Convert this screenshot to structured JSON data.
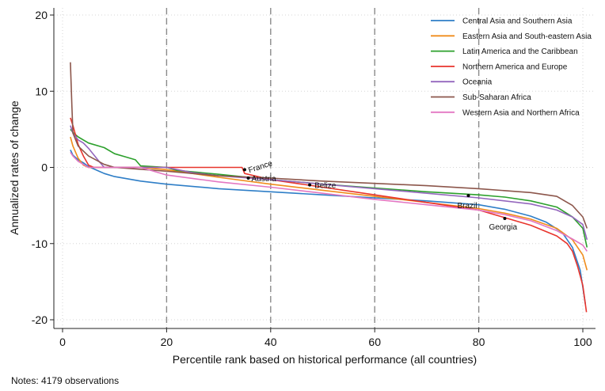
{
  "chart_data": {
    "type": "line",
    "xlabel": "Percentile rank based on historical performance (all countries)",
    "ylabel": "Annualized rates of change",
    "xlim": [
      0,
      101
    ],
    "ylim": [
      -21,
      20.5
    ],
    "xticks": [
      0,
      20,
      40,
      60,
      80,
      100
    ],
    "yticks": [
      -20,
      -10,
      0,
      10,
      20
    ],
    "grid": true,
    "legend_position": "top-right",
    "vlines": [
      20,
      40,
      60,
      80
    ],
    "series": [
      {
        "name": "Central Asia and Southern Asia",
        "color": "#2e7ec7",
        "points": [
          [
            1.5,
            2.3
          ],
          [
            2,
            1.6
          ],
          [
            3,
            1.0
          ],
          [
            4,
            0.6
          ],
          [
            5,
            0.1
          ],
          [
            6,
            -0.2
          ],
          [
            8,
            -0.8
          ],
          [
            10,
            -1.2
          ],
          [
            15,
            -1.8
          ],
          [
            20,
            -2.2
          ],
          [
            30,
            -2.8
          ],
          [
            40,
            -3.2
          ],
          [
            50,
            -3.6
          ],
          [
            60,
            -4.0
          ],
          [
            70,
            -4.4
          ],
          [
            80,
            -4.9
          ],
          [
            85,
            -5.5
          ],
          [
            90,
            -6.4
          ],
          [
            93,
            -7.2
          ],
          [
            96,
            -8.5
          ],
          [
            98,
            -10.5
          ],
          [
            99.5,
            -13.5
          ],
          [
            100.5,
            -18.0
          ]
        ]
      },
      {
        "name": "Eastern Asia and South-eastern Asia",
        "color": "#f08c1c",
        "points": [
          [
            1.5,
            4.0
          ],
          [
            2,
            2.8
          ],
          [
            3,
            1.2
          ],
          [
            4,
            0.3
          ],
          [
            5,
            0.0
          ],
          [
            10,
            0.0
          ],
          [
            15,
            0.0
          ],
          [
            20,
            -0.3
          ],
          [
            25,
            -0.8
          ],
          [
            30,
            -1.3
          ],
          [
            40,
            -2.2
          ],
          [
            50,
            -3.0
          ],
          [
            60,
            -3.8
          ],
          [
            70,
            -4.6
          ],
          [
            80,
            -5.4
          ],
          [
            85,
            -6.0
          ],
          [
            90,
            -6.8
          ],
          [
            95,
            -8.0
          ],
          [
            98,
            -9.5
          ],
          [
            100,
            -11.5
          ],
          [
            100.8,
            -13.5
          ]
        ]
      },
      {
        "name": "Latin America and the Caribbean",
        "color": "#2ca02c",
        "points": [
          [
            1.5,
            5.0
          ],
          [
            2,
            4.6
          ],
          [
            3,
            4.0
          ],
          [
            5,
            3.2
          ],
          [
            8,
            2.6
          ],
          [
            10,
            1.8
          ],
          [
            12,
            1.4
          ],
          [
            14,
            1.0
          ],
          [
            15,
            0.2
          ],
          [
            20,
            0.0
          ],
          [
            22,
            -0.4
          ],
          [
            30,
            -0.9
          ],
          [
            40,
            -1.6
          ],
          [
            50,
            -2.2
          ],
          [
            60,
            -2.7
          ],
          [
            70,
            -3.2
          ],
          [
            80,
            -3.6
          ],
          [
            85,
            -3.9
          ],
          [
            90,
            -4.4
          ],
          [
            95,
            -5.2
          ],
          [
            98,
            -6.5
          ],
          [
            100,
            -8.0
          ],
          [
            100.8,
            -10.5
          ]
        ]
      },
      {
        "name": "Northern America and Europe",
        "color": "#e8342c",
        "points": [
          [
            1.5,
            6.5
          ],
          [
            2,
            5.5
          ],
          [
            3,
            3.0
          ],
          [
            4,
            1.5
          ],
          [
            5,
            0.3
          ],
          [
            6,
            0.0
          ],
          [
            10,
            0.0
          ],
          [
            20,
            0.0
          ],
          [
            25,
            0.0
          ],
          [
            30,
            0.0
          ],
          [
            34.5,
            0.0
          ],
          [
            35,
            -0.8
          ],
          [
            40,
            -1.6
          ],
          [
            50,
            -2.6
          ],
          [
            60,
            -3.6
          ],
          [
            70,
            -4.6
          ],
          [
            80,
            -5.6
          ],
          [
            85,
            -6.6
          ],
          [
            90,
            -7.6
          ],
          [
            95,
            -9.0
          ],
          [
            97,
            -10.0
          ],
          [
            98,
            -11.0
          ],
          [
            99,
            -13.0
          ],
          [
            100,
            -15.5
          ],
          [
            100.7,
            -19.0
          ]
        ]
      },
      {
        "name": "Oceania",
        "color": "#9467bd",
        "points": [
          [
            1.5,
            5.5
          ],
          [
            2,
            4.5
          ],
          [
            3,
            3.6
          ],
          [
            4,
            3.2
          ],
          [
            5,
            2.5
          ],
          [
            7,
            0.8
          ],
          [
            8,
            0.0
          ],
          [
            20,
            0.0
          ],
          [
            25,
            -0.7
          ],
          [
            30,
            -1.1
          ],
          [
            40,
            -1.6
          ],
          [
            50,
            -2.2
          ],
          [
            60,
            -2.8
          ],
          [
            70,
            -3.4
          ],
          [
            80,
            -4.0
          ],
          [
            90,
            -4.8
          ],
          [
            95,
            -5.6
          ],
          [
            98,
            -6.5
          ],
          [
            100,
            -7.5
          ],
          [
            100.8,
            -9.5
          ]
        ]
      },
      {
        "name": "Sub-Saharan Africa",
        "color": "#8c564b",
        "points": [
          [
            1.5,
            13.8
          ],
          [
            1.8,
            8.0
          ],
          [
            2,
            4.5
          ],
          [
            3,
            2.8
          ],
          [
            5,
            1.5
          ],
          [
            8,
            0.4
          ],
          [
            10,
            0.0
          ],
          [
            20,
            -0.5
          ],
          [
            30,
            -1.1
          ],
          [
            40,
            -1.4
          ],
          [
            50,
            -1.8
          ],
          [
            60,
            -2.1
          ],
          [
            70,
            -2.4
          ],
          [
            80,
            -2.8
          ],
          [
            90,
            -3.3
          ],
          [
            95,
            -3.8
          ],
          [
            98,
            -5.0
          ],
          [
            100,
            -6.5
          ],
          [
            100.8,
            -8.0
          ]
        ]
      },
      {
        "name": "Western Asia and Northern Africa",
        "color": "#e377c2",
        "points": [
          [
            1.5,
            2.0
          ],
          [
            2,
            1.5
          ],
          [
            3,
            0.8
          ],
          [
            5,
            0.0
          ],
          [
            10,
            0.0
          ],
          [
            15,
            0.0
          ],
          [
            20,
            -1.0
          ],
          [
            30,
            -1.9
          ],
          [
            40,
            -2.6
          ],
          [
            50,
            -3.4
          ],
          [
            60,
            -4.2
          ],
          [
            70,
            -4.9
          ],
          [
            80,
            -5.6
          ],
          [
            85,
            -6.2
          ],
          [
            90,
            -7.0
          ],
          [
            95,
            -8.3
          ],
          [
            98,
            -9.4
          ],
          [
            100,
            -10.2
          ],
          [
            100.8,
            -11.0
          ]
        ]
      }
    ],
    "annotations": [
      {
        "text": "France",
        "x": 35,
        "y": -0.3,
        "rotate": -18,
        "dx": 6,
        "dy": 4
      },
      {
        "text": "Austria",
        "x": 35.7,
        "y": -1.4,
        "rotate": 0,
        "dx": 4,
        "dy": 4
      },
      {
        "text": "Belize",
        "x": 47.5,
        "y": -2.3,
        "rotate": 0,
        "dx": 6,
        "dy": 4
      },
      {
        "text": "Brazil",
        "x": 78,
        "y": -3.7,
        "rotate": 0,
        "dx": -14,
        "dy": 16
      },
      {
        "text": "Georgia",
        "x": 85,
        "y": -6.7,
        "rotate": 0,
        "dx": -20,
        "dy": 14
      }
    ]
  },
  "notes": "Notes: 4179 observations"
}
